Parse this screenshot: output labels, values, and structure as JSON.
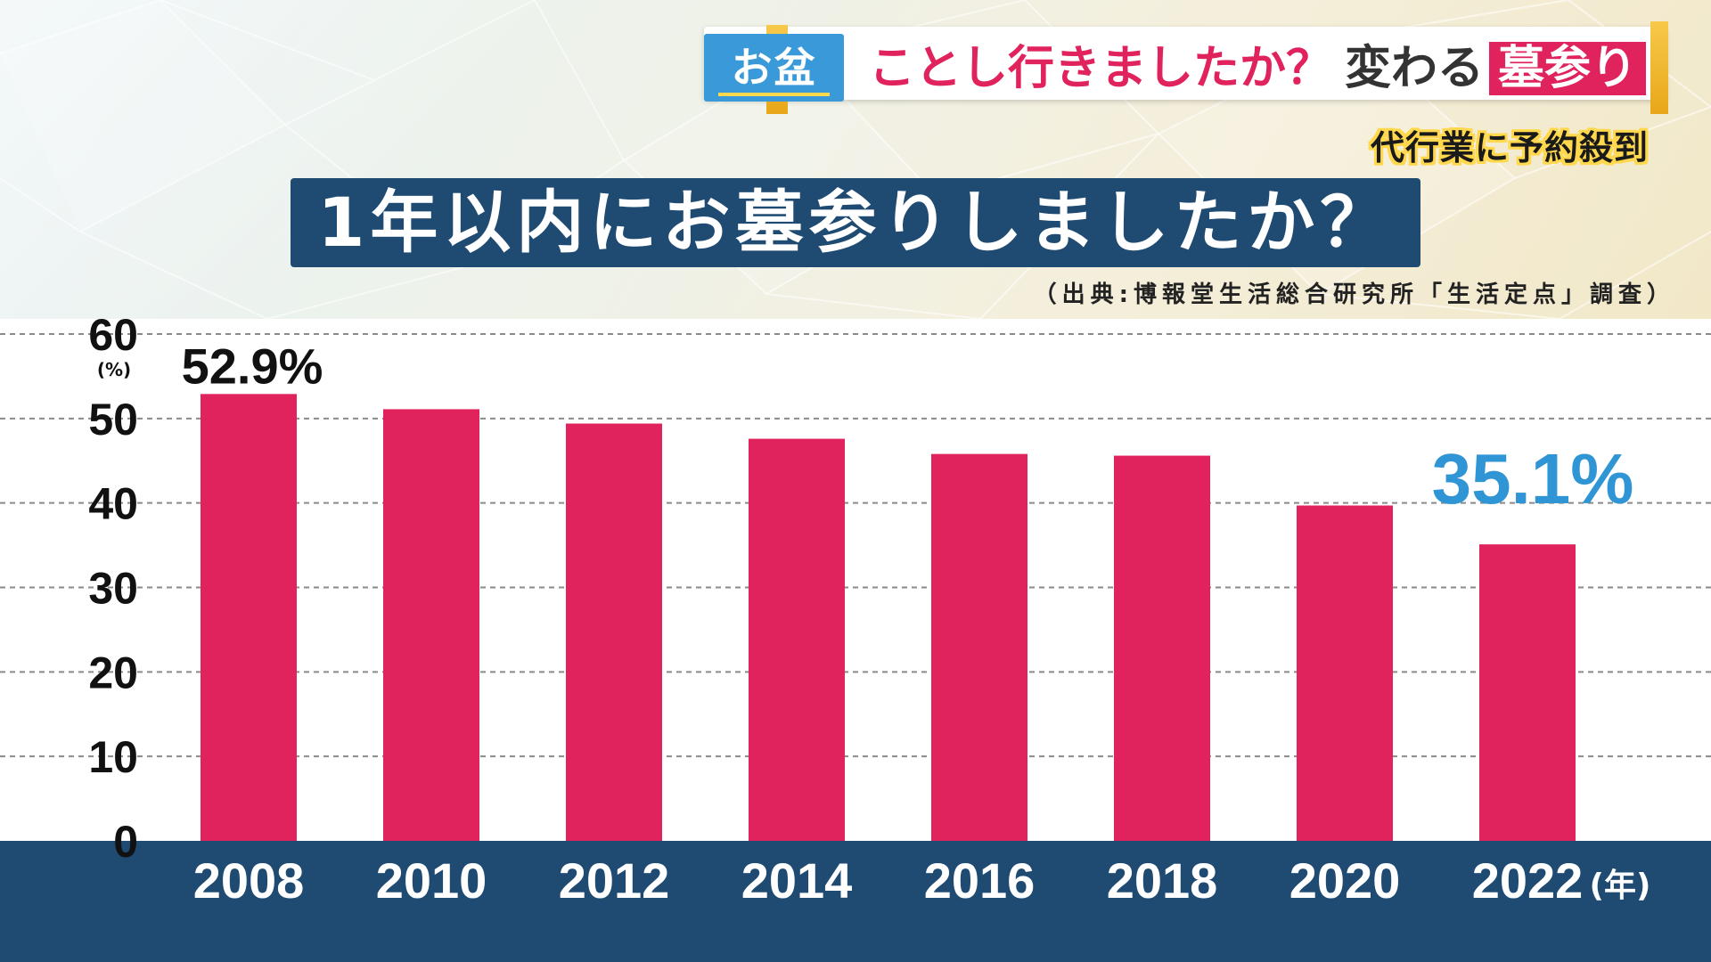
{
  "header": {
    "tag": "お盆",
    "headline_part1": "ことし行きましたか？",
    "headline_part2": "変わる",
    "headline_boxed": "墓参り",
    "subheadline": "代行業に予約殺到"
  },
  "colors": {
    "bar": "#e0235c",
    "navy": "#1f4b73",
    "highlight_blue": "#2f95d4",
    "tag_blue": "#3a9ad9",
    "gold": "#f2b92e"
  },
  "chart_data": {
    "type": "bar",
    "title": "1年以内にお墓参りしましたか？",
    "source": "（出典:博報堂生活総合研究所「生活定点」調査）",
    "x_unit": "(年)",
    "y_unit": "(%)",
    "categories": [
      "2008",
      "2010",
      "2012",
      "2014",
      "2016",
      "2018",
      "2020",
      "2022"
    ],
    "values": [
      52.9,
      51.1,
      49.4,
      47.6,
      45.8,
      45.6,
      39.7,
      35.1
    ],
    "ylim": [
      0,
      60
    ],
    "yticks": [
      0,
      10,
      20,
      30,
      40,
      50,
      60
    ],
    "grid": true,
    "data_labels": [
      {
        "category": "2008",
        "text": "52.9%",
        "style": "black"
      },
      {
        "category": "2022",
        "text": "35.1%",
        "style": "blue"
      }
    ]
  }
}
